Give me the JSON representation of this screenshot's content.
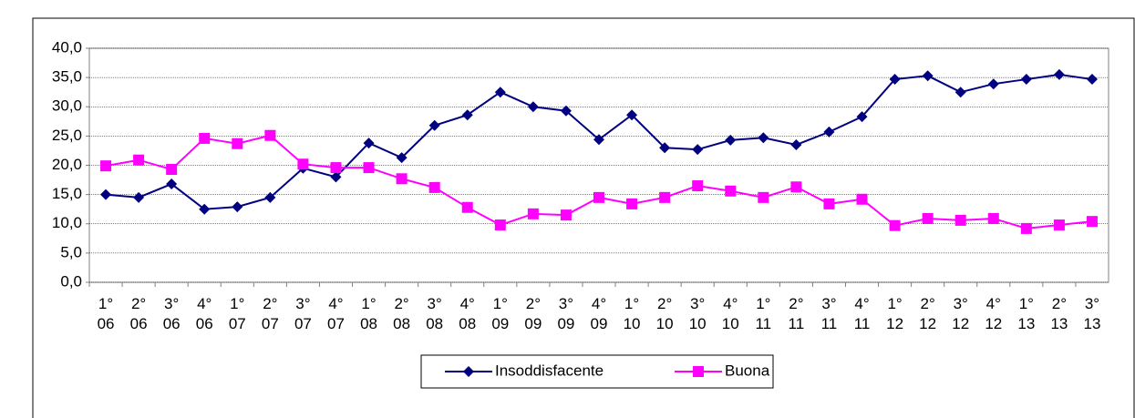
{
  "chart_data": {
    "type": "line",
    "categories": [
      "1° 06",
      "2° 06",
      "3° 06",
      "4° 06",
      "1° 07",
      "2° 07",
      "3° 07",
      "4° 07",
      "1° 08",
      "2° 08",
      "3° 08",
      "4° 08",
      "1° 09",
      "2° 09",
      "3° 09",
      "4° 09",
      "1° 10",
      "2° 10",
      "3° 10",
      "4° 10",
      "1° 11",
      "2° 11",
      "3° 11",
      "4° 11",
      "1° 12",
      "2° 12",
      "3° 12",
      "4° 12",
      "1° 13",
      "2° 13",
      "3° 13"
    ],
    "series": [
      {
        "name": "Insoddisfacente",
        "color": "#000080",
        "marker": "diamond",
        "values": [
          15.0,
          14.5,
          16.8,
          12.5,
          12.9,
          14.5,
          19.5,
          18.0,
          23.8,
          21.3,
          26.8,
          28.6,
          32.5,
          30.0,
          29.3,
          24.4,
          28.6,
          23.0,
          22.7,
          24.3,
          24.7,
          23.5,
          25.7,
          28.3,
          34.7,
          35.3,
          32.5,
          33.9,
          34.7,
          35.5,
          34.7
        ]
      },
      {
        "name": "Buona",
        "color": "#ff00ff",
        "marker": "square",
        "values": [
          19.9,
          20.9,
          19.3,
          24.6,
          23.7,
          25.1,
          20.2,
          19.6,
          19.6,
          17.7,
          16.2,
          12.8,
          9.8,
          11.7,
          11.5,
          14.5,
          13.4,
          14.5,
          16.5,
          15.6,
          14.5,
          16.3,
          13.4,
          14.2,
          9.7,
          10.9,
          10.6,
          10.9,
          9.2,
          9.8,
          10.4
        ]
      }
    ],
    "ylim": [
      0,
      40
    ],
    "yticks": [
      {
        "value": 0,
        "label": "0,0"
      },
      {
        "value": 5,
        "label": "5,0"
      },
      {
        "value": 10,
        "label": "10,0"
      },
      {
        "value": 15,
        "label": "15,0"
      },
      {
        "value": 20,
        "label": "20,0"
      },
      {
        "value": 25,
        "label": "25,0"
      },
      {
        "value": 30,
        "label": "30,0"
      },
      {
        "value": 35,
        "label": "35,0"
      },
      {
        "value": 40,
        "label": "40,0"
      }
    ],
    "grid": true,
    "legend": "bottom"
  }
}
